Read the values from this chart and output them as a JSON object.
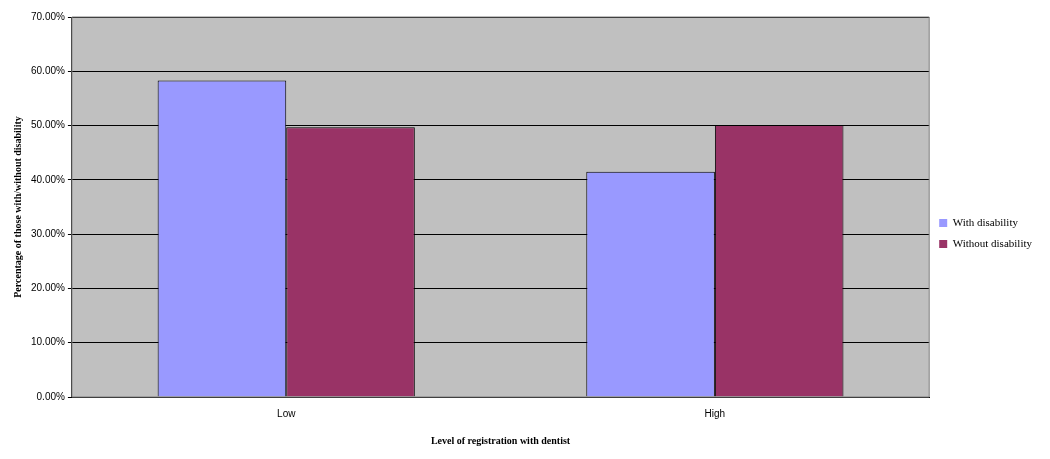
{
  "chart_data": {
    "type": "bar",
    "xlabel": "Level of registration with dentist",
    "ylabel": "Percentage of those with/without disability",
    "categories": [
      "Low",
      "High"
    ],
    "series": [
      {
        "name": "With disability",
        "color": "#9999ff",
        "values": [
          58.3,
          41.5
        ]
      },
      {
        "name": "Without disability",
        "color": "#993366",
        "values": [
          49.7,
          50.1
        ]
      }
    ],
    "ylim": [
      0,
      70
    ],
    "yticks": [
      {
        "value": 0,
        "label": "0.00%"
      },
      {
        "value": 10,
        "label": "10.00%"
      },
      {
        "value": 20,
        "label": "20.00%"
      },
      {
        "value": 30,
        "label": "30.00%"
      },
      {
        "value": 40,
        "label": "40.00%"
      },
      {
        "value": 50,
        "label": "50.00%"
      },
      {
        "value": 60,
        "label": "60.00%"
      },
      {
        "value": 70,
        "label": "70.00%"
      }
    ],
    "grid": "y",
    "legend": "right"
  }
}
